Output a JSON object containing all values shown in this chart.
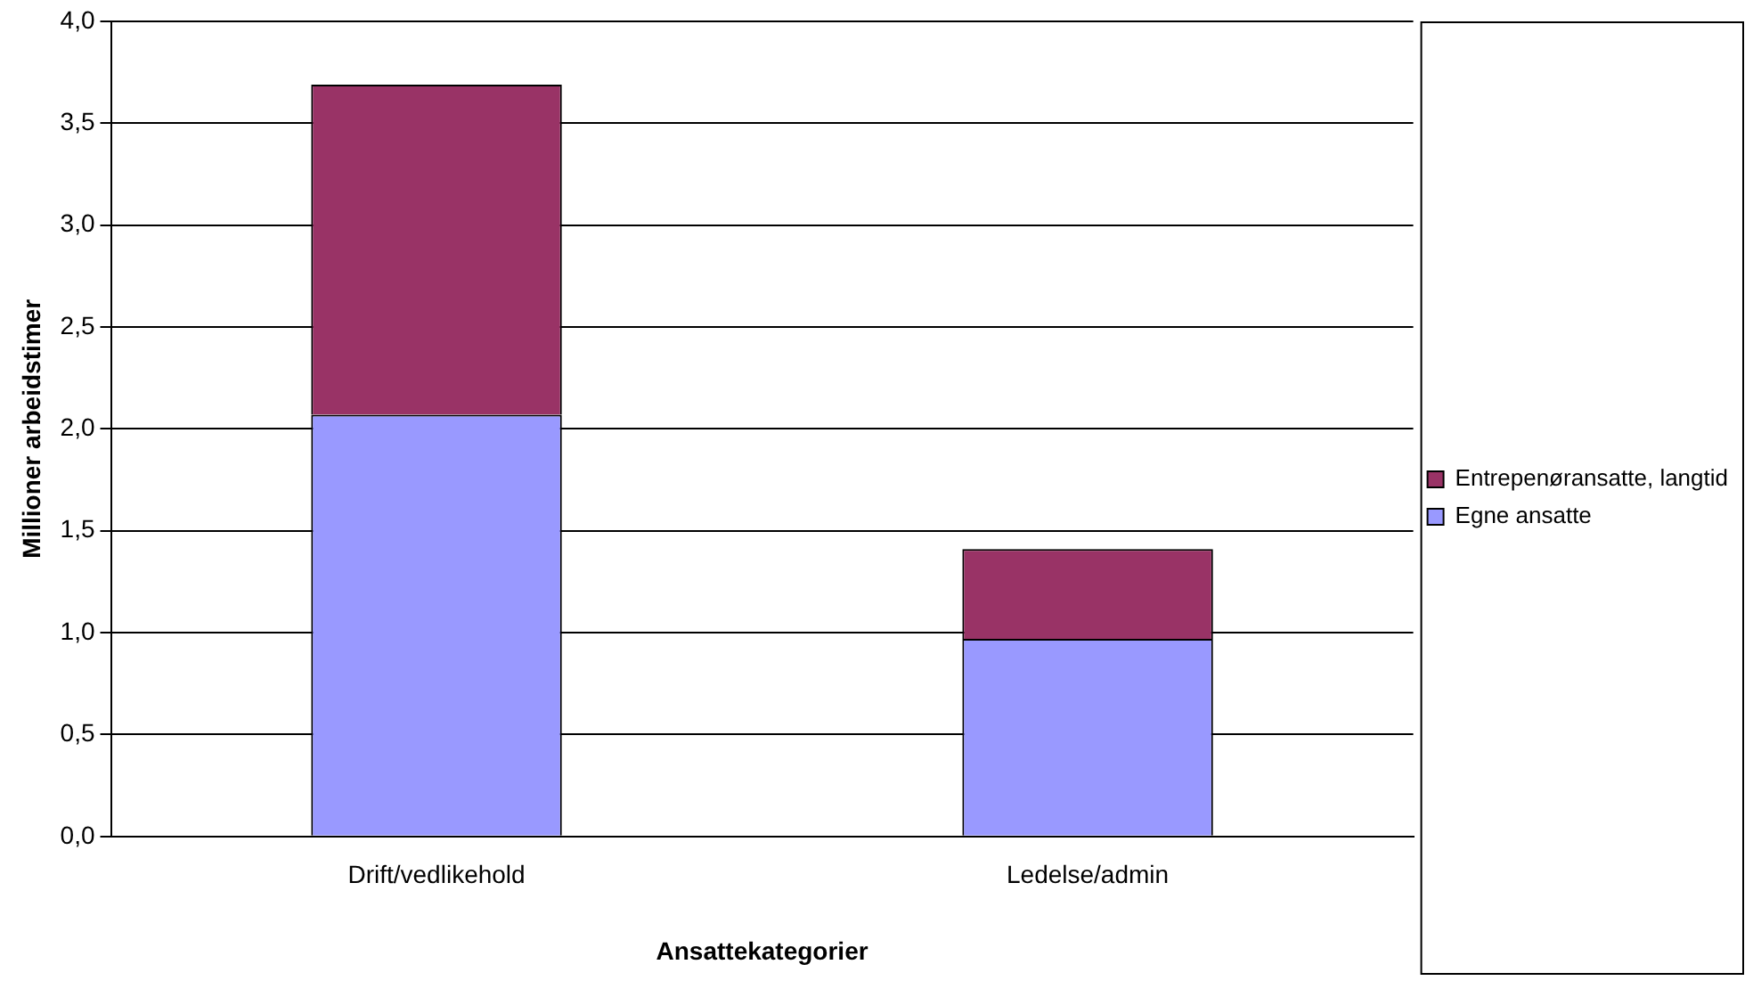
{
  "chart_data": {
    "type": "bar",
    "stacked": true,
    "xlabel": "Ansattekategorier",
    "ylabel": "Millioner arbeidstimer",
    "categories": [
      "Drift/vedlikehold",
      "Ledelse/admin"
    ],
    "series": [
      {
        "name": "Egne ansatte",
        "color": "#9999ff",
        "values": [
          2.07,
          0.97
        ]
      },
      {
        "name": "Entrepenøransatte, langtid",
        "color": "#993366",
        "values": [
          1.62,
          0.44
        ]
      }
    ],
    "ylim": [
      0,
      4
    ],
    "yticks": [
      {
        "value": 0,
        "label": "0,0"
      },
      {
        "value": 0.5,
        "label": "0,5"
      },
      {
        "value": 1,
        "label": "1,0"
      },
      {
        "value": 1.5,
        "label": "1,5"
      },
      {
        "value": 2,
        "label": "2,0"
      },
      {
        "value": 2.5,
        "label": "2,5"
      },
      {
        "value": 3,
        "label": "3,0"
      },
      {
        "value": 3.5,
        "label": "3,5"
      },
      {
        "value": 4,
        "label": "4,0"
      }
    ],
    "grid": "y",
    "legend": "right"
  }
}
